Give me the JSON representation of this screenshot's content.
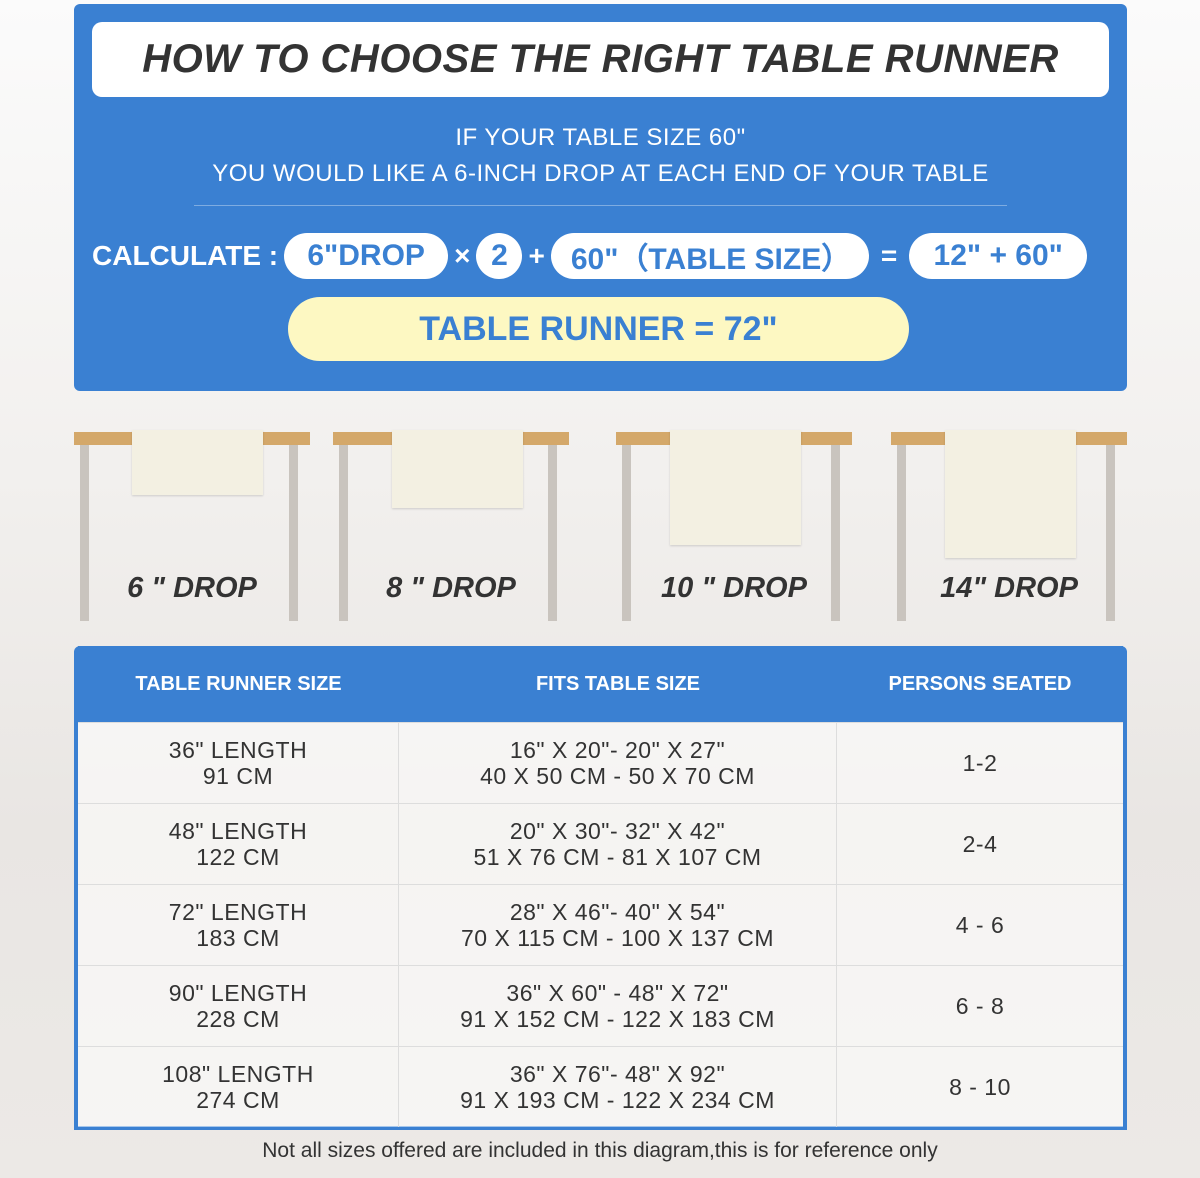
{
  "title": "HOW TO CHOOSE THE RIGHT TABLE RUNNER",
  "intro": [
    "IF YOUR TABLE SIZE 60\"",
    "YOU WOULD LIKE A 6-INCH DROP AT EACH END OF YOUR TABLE"
  ],
  "calc": {
    "label": "CALCULATE :",
    "drop": "6\"DROP",
    "times": "×",
    "multiplier": "2",
    "plus": "+",
    "table": "60\"（TABLE SIZE）",
    "equals": "=",
    "result_expr": "12\" + 60\"",
    "result": "TABLE RUNNER = 72\""
  },
  "drops": [
    {
      "label": "6 \" DROP",
      "inches": 6
    },
    {
      "label": "8 \" DROP",
      "inches": 8
    },
    {
      "label": "10 \" DROP",
      "inches": 10
    },
    {
      "label": "14\" DROP",
      "inches": 14
    }
  ],
  "colors": {
    "accent": "#3a80d2",
    "highlight": "#fdf8c2",
    "wood": "#d4a86a"
  },
  "table": {
    "headers": [
      "TABLE RUNNER SIZE",
      "FITS TABLE SIZE",
      "PERSONS SEATED"
    ],
    "rows": [
      {
        "size": [
          "36\" LENGTH",
          "91 CM"
        ],
        "fits": [
          "16\" X 20\"- 20\" X 27\"",
          "40 X 50 CM - 50 X 70 CM"
        ],
        "persons": "1-2"
      },
      {
        "size": [
          "48\" LENGTH",
          "122 CM"
        ],
        "fits": [
          "20\" X 30\"- 32\" X 42\"",
          "51 X 76 CM - 81 X 107 CM"
        ],
        "persons": "2-4"
      },
      {
        "size": [
          "72\" LENGTH",
          "183 CM"
        ],
        "fits": [
          "28\" X 46\"- 40\" X 54\"",
          "70 X 115 CM - 100 X 137 CM"
        ],
        "persons": "4 - 6"
      },
      {
        "size": [
          "90\" LENGTH",
          "228 CM"
        ],
        "fits": [
          "36\" X 60\" - 48\" X 72\"",
          "91 X 152 CM - 122 X 183 CM"
        ],
        "persons": "6 - 8"
      },
      {
        "size": [
          "108\" LENGTH",
          "274 CM"
        ],
        "fits": [
          "36\" X 76\"- 48\" X 92\"",
          "91 X 193 CM - 122 X 234 CM"
        ],
        "persons": "8 - 10"
      }
    ]
  },
  "footnote": "Not all sizes offered are included in this diagram,this is for reference only"
}
